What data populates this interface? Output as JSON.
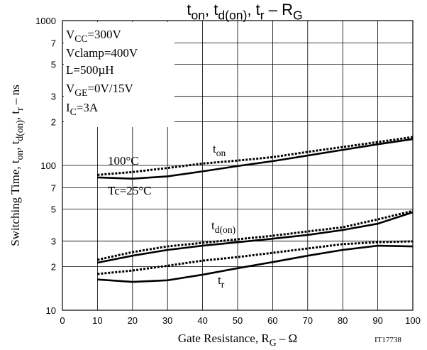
{
  "chart_data": {
    "type": "line",
    "title": [
      "t",
      "on",
      ", t",
      "d(on)",
      ", t",
      "r",
      "  –  R",
      "G"
    ],
    "x_label": [
      "Gate Resistance, R",
      "G",
      "  –  Ω"
    ],
    "y_label": [
      "Switching Time, t",
      "on",
      ", t",
      "d(on)",
      ", t",
      "r",
      "  –  ns"
    ],
    "figure_id": "IT17738",
    "x": [
      10,
      20,
      30,
      40,
      50,
      60,
      70,
      80,
      90,
      100
    ],
    "series": [
      {
        "color": "#000000",
        "style": "solid",
        "values": [
          82.6,
          81,
          84,
          91,
          99,
          107,
          117,
          128,
          140,
          152
        ]
      },
      {
        "color": "#000000",
        "style": "dotted",
        "values": [
          86,
          90,
          96,
          103,
          108,
          114,
          124,
          134,
          145,
          157
        ]
      },
      {
        "color": "#000000",
        "style": "solid",
        "values": [
          21.3,
          23.8,
          26.1,
          27.9,
          29.5,
          31.2,
          33.1,
          35.8,
          39.6,
          47.5
        ]
      },
      {
        "color": "#000000",
        "style": "dotted",
        "values": [
          22.3,
          25.2,
          27.6,
          29.2,
          30.9,
          32.7,
          35,
          37.4,
          42.4,
          48.5
        ]
      },
      {
        "color": "#000000",
        "style": "solid",
        "values": [
          16.3,
          15.7,
          16.1,
          17.6,
          19.5,
          21.5,
          23.8,
          26.1,
          27.9,
          27.6
        ]
      },
      {
        "color": "#000000",
        "style": "dotted",
        "values": [
          17.8,
          18.8,
          20.3,
          22,
          23.3,
          24.9,
          26.7,
          28.6,
          29.5,
          29.9
        ]
      }
    ],
    "xlim": [
      0,
      100
    ],
    "xticks": [
      0,
      10,
      20,
      30,
      40,
      50,
      60,
      70,
      80,
      90,
      100
    ],
    "ylim": [
      10,
      1000
    ],
    "log_y": true,
    "yticks": [
      10,
      {
        "value": 20,
        "label": "2"
      },
      {
        "value": 30,
        "label": "3"
      },
      {
        "value": 50,
        "label": "5"
      },
      {
        "value": 70,
        "label": "7"
      },
      100,
      {
        "value": 200,
        "label": "2"
      },
      {
        "value": 300,
        "label": "3"
      },
      {
        "value": 500,
        "label": "5"
      },
      {
        "value": 700,
        "label": "7"
      },
      1000
    ],
    "grid": true,
    "annotations": [
      [
        "V",
        "CC",
        "=300V"
      ],
      [
        "Vclamp=400V"
      ],
      [
        "L=500µH"
      ],
      [
        "V",
        "GE",
        "=0V/15V"
      ],
      [
        "I",
        "C",
        "=3A"
      ],
      [
        "100°C"
      ],
      [
        "Tc=25°C"
      ],
      [
        "t",
        "on"
      ],
      [
        "t",
        "d(on)"
      ],
      [
        "t",
        "r"
      ]
    ]
  }
}
